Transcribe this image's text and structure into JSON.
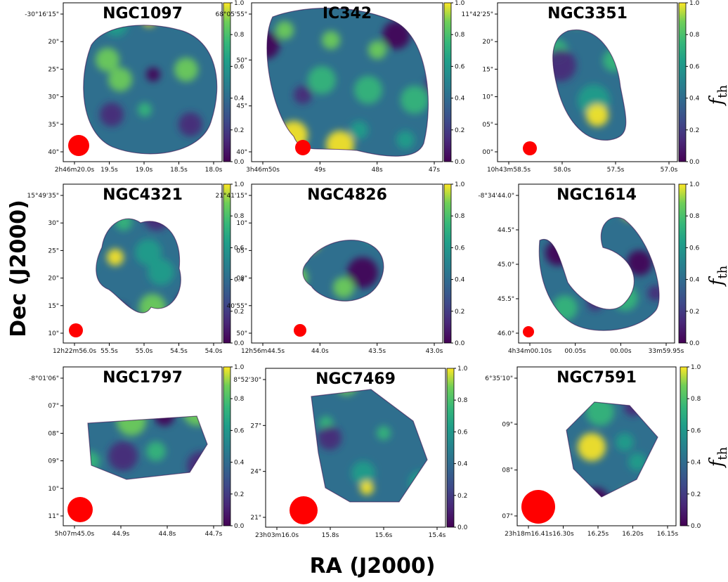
{
  "figure": {
    "xlabel": "RA (J2000)",
    "ylabel": "Dec (J2000)",
    "colorbar_label": "f",
    "colorbar_label_sub": "th",
    "colorbar_ticks": [
      "0.0",
      "0.2",
      "0.4",
      "0.6",
      "0.8",
      "1.0"
    ],
    "beam_color": "#ff0000",
    "colormap": "viridis"
  },
  "chart_data": [
    {
      "type": "heatmap",
      "title": "NGC1097",
      "ytick_labels": [
        "-30°16'15\"",
        "20\"",
        "25\"",
        "30\"",
        "35\"",
        "40\""
      ],
      "xtick_labels": [
        "2h46m20.0s",
        "19.5s",
        "19.0s",
        "18.5s",
        "18.0s"
      ],
      "clim": [
        0.0,
        1.0
      ]
    },
    {
      "type": "heatmap",
      "title": "IC342",
      "ytick_labels": [
        "68°05'55\"",
        "50\"",
        "45\"",
        "40\""
      ],
      "xtick_labels": [
        "3h46m50s",
        "49s",
        "48s",
        "47s"
      ],
      "clim": [
        0.0,
        1.0
      ]
    },
    {
      "type": "heatmap",
      "title": "NGC3351",
      "ytick_labels": [
        "11°42'25\"",
        "20\"",
        "15\"",
        "10\"",
        "05\"",
        "00\""
      ],
      "xtick_labels": [
        "10h43m58.5s",
        "58.0s",
        "57.5s",
        "57.0s"
      ],
      "clim": [
        0.0,
        1.0
      ]
    },
    {
      "type": "heatmap",
      "title": "NGC4321",
      "ytick_labels": [
        "15°49'35\"",
        "30\"",
        "25\"",
        "20\"",
        "15\"",
        "10\""
      ],
      "xtick_labels": [
        "12h22m56.0s",
        "55.5s",
        "55.0s",
        "54.5s",
        "54.0s"
      ],
      "clim": [
        0.0,
        1.0
      ]
    },
    {
      "type": "heatmap",
      "title": "NGC4826",
      "ytick_labels": [
        "21°41'15\"",
        "10\"",
        "05\"",
        "00\"",
        "40'55\"",
        "50\""
      ],
      "xtick_labels": [
        "12h56m44.5s",
        "44.0s",
        "43.5s",
        "43.0s"
      ],
      "clim": [
        0.0,
        1.0
      ]
    },
    {
      "type": "heatmap",
      "title": "NGC1614",
      "ytick_labels": [
        "-8°34'44.0\"",
        "44.5\"",
        "45.0\"",
        "45.5\"",
        "46.0\""
      ],
      "xtick_labels": [
        "4h34m00.10s",
        "00.05s",
        "00.00s",
        "33m59.95s"
      ],
      "clim": [
        0.0,
        1.0
      ]
    },
    {
      "type": "heatmap",
      "title": "NGC1797",
      "ytick_labels": [
        "-8°01'06\"",
        "07\"",
        "08\"",
        "09\"",
        "10\"",
        "11\""
      ],
      "xtick_labels": [
        "5h07m45.0s",
        "44.9s",
        "44.8s",
        "44.7s"
      ],
      "clim": [
        0.0,
        1.0
      ]
    },
    {
      "type": "heatmap",
      "title": "NGC7469",
      "ytick_labels": [
        "8°52'30\"",
        "27\"",
        "24\"",
        "21\""
      ],
      "xtick_labels": [
        "23h03m16.0s",
        "15.8s",
        "15.6s",
        "15.4s"
      ],
      "clim": [
        0.0,
        1.0
      ]
    },
    {
      "type": "heatmap",
      "title": "NGC7591",
      "ytick_labels": [
        "6°35'10\"",
        "09\"",
        "08\"",
        "07\""
      ],
      "xtick_labels": [
        "23h18m16.41s",
        "16.30s",
        "16.25s",
        "16.20s",
        "16.15s"
      ],
      "clim": [
        0.0,
        1.0
      ]
    }
  ]
}
